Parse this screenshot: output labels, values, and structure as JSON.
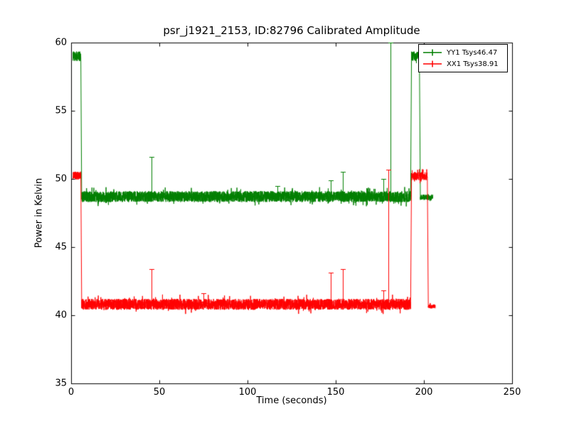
{
  "chart_data": {
    "type": "line",
    "title": "psr_j1921_2153, ID:82796 Calibrated Amplitude",
    "xlabel": "Time (seconds)",
    "ylabel": "Power in Kelvin",
    "xlim": [
      0,
      250
    ],
    "ylim": [
      35,
      60
    ],
    "xticks": [
      0,
      50,
      100,
      150,
      200,
      250
    ],
    "yticks": [
      35,
      40,
      45,
      50,
      55,
      60
    ],
    "grid": false,
    "legend_position": "upper right",
    "series": [
      {
        "name": "YY1 Tsys46.47",
        "color": "#007f00",
        "marker": "+",
        "segments": [
          {
            "t0": 1.0,
            "t1": 5.5,
            "level": 59.0,
            "noise": 0.35
          },
          {
            "t0": 6.0,
            "t1": 192.5,
            "level": 48.7,
            "noise": 0.4
          },
          {
            "t0": 193.0,
            "t1": 197.5,
            "level": 59.0,
            "noise": 0.35
          },
          {
            "t0": 198.0,
            "t1": 205.0,
            "level": 48.65,
            "noise": 0.2
          }
        ],
        "spikes": [
          {
            "t": 45.5,
            "value": 51.6
          },
          {
            "t": 117.0,
            "value": 49.5
          },
          {
            "t": 147.0,
            "value": 49.9
          },
          {
            "t": 154.0,
            "value": 50.5
          },
          {
            "t": 177.0,
            "value": 50.0
          },
          {
            "t": 181.0,
            "value": 60.0
          }
        ]
      },
      {
        "name": "XX1 Tsys38.91",
        "color": "#ff0000",
        "marker": "+",
        "segments": [
          {
            "t0": 1.0,
            "t1": 5.5,
            "level": 50.25,
            "noise": 0.3
          },
          {
            "t0": 6.0,
            "t1": 192.5,
            "level": 40.8,
            "noise": 0.4
          },
          {
            "t0": 193.0,
            "t1": 202.0,
            "level": 50.2,
            "noise": 0.3
          },
          {
            "t0": 202.5,
            "t1": 206.5,
            "level": 40.65,
            "noise": 0.15
          }
        ],
        "spikes": [
          {
            "t": 45.5,
            "value": 43.4
          },
          {
            "t": 75.0,
            "value": 41.6
          },
          {
            "t": 147.0,
            "value": 43.1
          },
          {
            "t": 154.0,
            "value": 43.4
          },
          {
            "t": 177.0,
            "value": 41.8
          },
          {
            "t": 180.0,
            "value": 50.7
          }
        ]
      }
    ]
  }
}
